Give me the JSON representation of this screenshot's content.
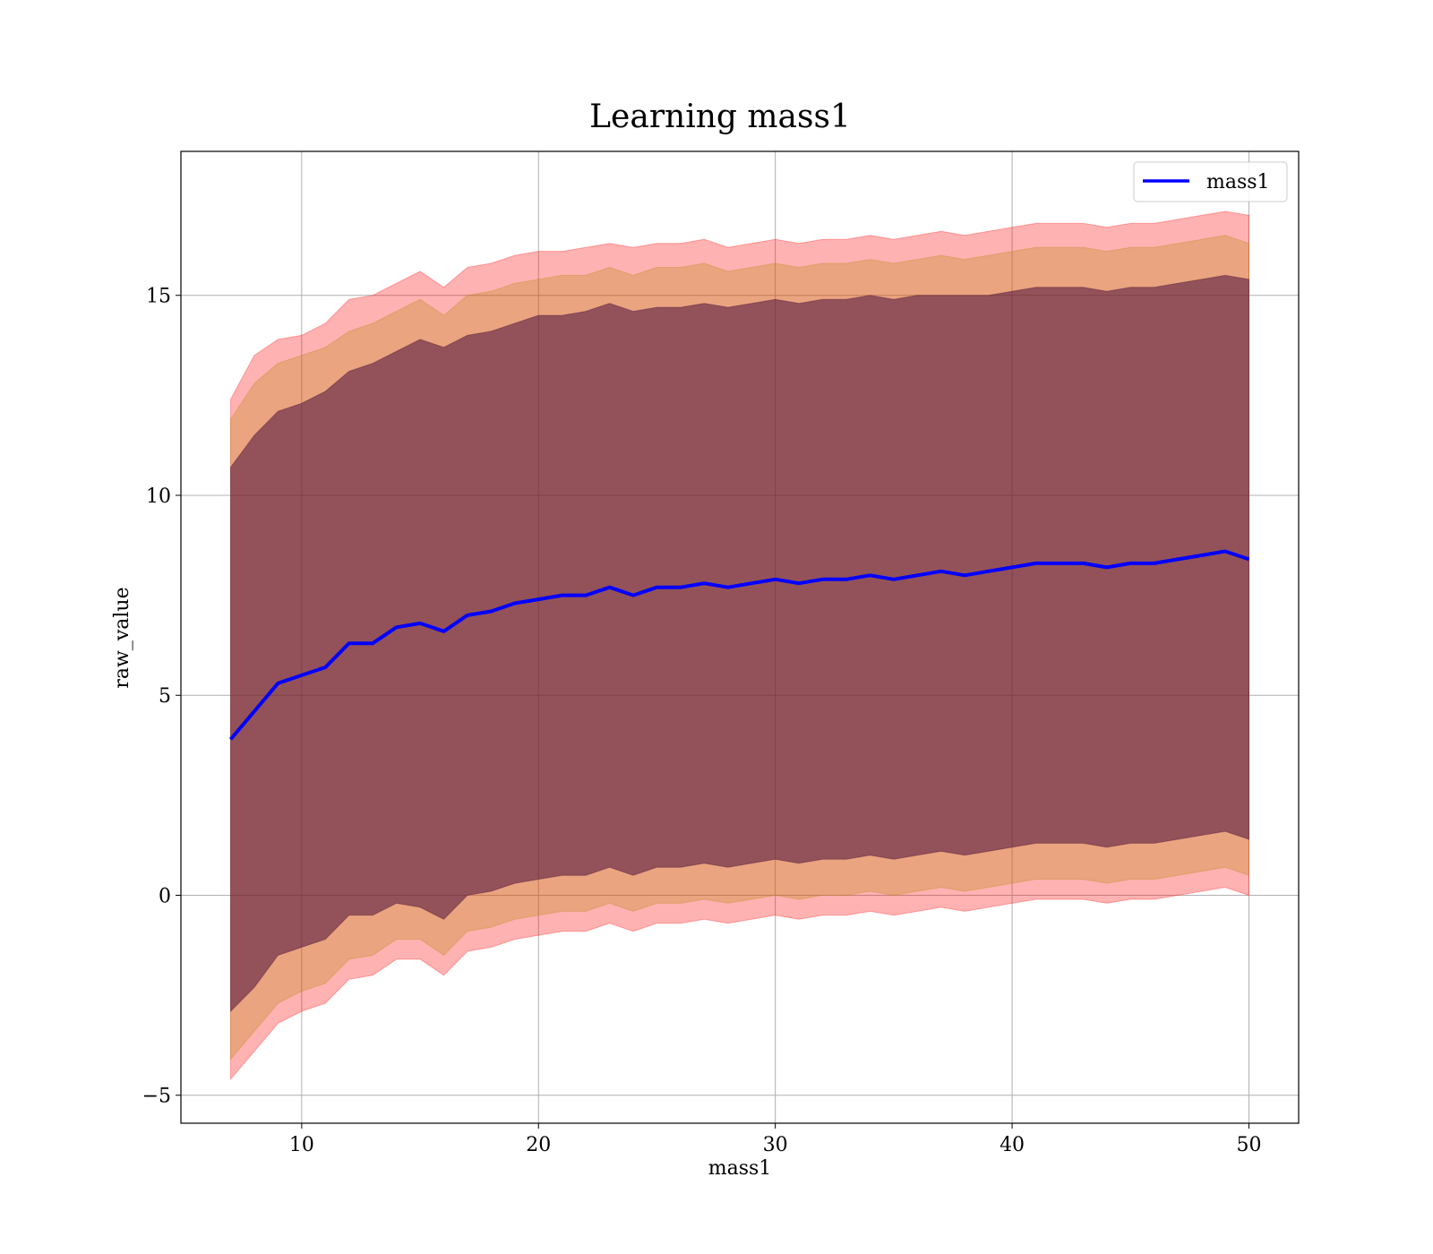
{
  "chart_data": {
    "type": "line",
    "title": "Learning mass1",
    "xlabel": "mass1",
    "ylabel": "raw_value",
    "xlim": [
      4.9,
      52.1
    ],
    "ylim": [
      -5.7,
      18.6
    ],
    "xticks": [
      10,
      20,
      30,
      40,
      50
    ],
    "yticks": [
      -5,
      0,
      5,
      10,
      15
    ],
    "xtick_labels": [
      "10",
      "20",
      "30",
      "40",
      "50"
    ],
    "ytick_labels": [
      "−5",
      "0",
      "5",
      "10",
      "15"
    ],
    "grid": true,
    "legend": {
      "position": "top-right",
      "entries": [
        "mass1"
      ]
    },
    "colors": {
      "line": "#0000ff",
      "band_outer": "#ff0000",
      "band_middle": "#b8860b",
      "band_inner": "#4b0f3a",
      "grid": "#b0b0b0"
    },
    "series": [
      {
        "name": "mass1",
        "x": [
          7,
          8,
          9,
          10,
          11,
          12,
          13,
          14,
          15,
          16,
          17,
          18,
          19,
          20,
          21,
          22,
          23,
          24,
          25,
          26,
          27,
          28,
          29,
          30,
          31,
          32,
          33,
          34,
          35,
          36,
          37,
          38,
          39,
          40,
          41,
          42,
          43,
          44,
          45,
          46,
          47,
          48,
          49,
          50
        ],
        "mean": [
          3.9,
          4.6,
          5.3,
          5.5,
          5.7,
          6.3,
          6.3,
          6.7,
          6.8,
          6.6,
          7.0,
          7.1,
          7.3,
          7.4,
          7.5,
          7.5,
          7.7,
          7.5,
          7.7,
          7.7,
          7.8,
          7.7,
          7.8,
          7.9,
          7.8,
          7.9,
          7.9,
          8.0,
          7.9,
          8.0,
          8.1,
          8.0,
          8.1,
          8.2,
          8.3,
          8.3,
          8.3,
          8.2,
          8.3,
          8.3,
          8.4,
          8.5,
          8.6,
          8.4
        ],
        "band_inner": {
          "upper": [
            10.7,
            11.5,
            12.1,
            12.3,
            12.6,
            13.1,
            13.3,
            13.6,
            13.9,
            13.7,
            14.0,
            14.1,
            14.3,
            14.5,
            14.5,
            14.6,
            14.8,
            14.6,
            14.7,
            14.7,
            14.8,
            14.7,
            14.8,
            14.9,
            14.8,
            14.9,
            14.9,
            15.0,
            14.9,
            15.0,
            15.0,
            15.0,
            15.0,
            15.1,
            15.2,
            15.2,
            15.2,
            15.1,
            15.2,
            15.2,
            15.3,
            15.4,
            15.5,
            15.4
          ],
          "lower": [
            -2.9,
            -2.3,
            -1.5,
            -1.3,
            -1.1,
            -0.5,
            -0.5,
            -0.2,
            -0.3,
            -0.6,
            0.0,
            0.1,
            0.3,
            0.4,
            0.5,
            0.5,
            0.7,
            0.5,
            0.7,
            0.7,
            0.8,
            0.7,
            0.8,
            0.9,
            0.8,
            0.9,
            0.9,
            1.0,
            0.9,
            1.0,
            1.1,
            1.0,
            1.1,
            1.2,
            1.3,
            1.3,
            1.3,
            1.2,
            1.3,
            1.3,
            1.4,
            1.5,
            1.6,
            1.4
          ]
        },
        "band_middle": {
          "upper": [
            11.9,
            12.8,
            13.3,
            13.5,
            13.7,
            14.1,
            14.3,
            14.6,
            14.9,
            14.5,
            15.0,
            15.1,
            15.3,
            15.4,
            15.5,
            15.5,
            15.7,
            15.5,
            15.7,
            15.7,
            15.8,
            15.6,
            15.7,
            15.8,
            15.7,
            15.8,
            15.8,
            15.9,
            15.8,
            15.9,
            16.0,
            15.9,
            16.0,
            16.1,
            16.2,
            16.2,
            16.2,
            16.1,
            16.2,
            16.2,
            16.3,
            16.4,
            16.5,
            16.3
          ],
          "lower": [
            -4.1,
            -3.4,
            -2.7,
            -2.4,
            -2.2,
            -1.6,
            -1.5,
            -1.1,
            -1.1,
            -1.5,
            -0.9,
            -0.8,
            -0.6,
            -0.5,
            -0.4,
            -0.4,
            -0.2,
            -0.4,
            -0.2,
            -0.2,
            -0.1,
            -0.2,
            -0.1,
            0.0,
            -0.1,
            0.0,
            0.0,
            0.1,
            0.0,
            0.1,
            0.2,
            0.1,
            0.2,
            0.3,
            0.4,
            0.4,
            0.4,
            0.3,
            0.4,
            0.4,
            0.5,
            0.6,
            0.7,
            0.5
          ]
        },
        "band_outer": {
          "upper": [
            12.4,
            13.5,
            13.9,
            14.0,
            14.3,
            14.9,
            15.0,
            15.3,
            15.6,
            15.2,
            15.7,
            15.8,
            16.0,
            16.1,
            16.1,
            16.2,
            16.3,
            16.2,
            16.3,
            16.3,
            16.4,
            16.2,
            16.3,
            16.4,
            16.3,
            16.4,
            16.4,
            16.5,
            16.4,
            16.5,
            16.6,
            16.5,
            16.6,
            16.7,
            16.8,
            16.8,
            16.8,
            16.7,
            16.8,
            16.8,
            16.9,
            17.0,
            17.1,
            17.0
          ],
          "lower": [
            -4.6,
            -3.9,
            -3.2,
            -2.9,
            -2.7,
            -2.1,
            -2.0,
            -1.6,
            -1.6,
            -2.0,
            -1.4,
            -1.3,
            -1.1,
            -1.0,
            -0.9,
            -0.9,
            -0.7,
            -0.9,
            -0.7,
            -0.7,
            -0.6,
            -0.7,
            -0.6,
            -0.5,
            -0.6,
            -0.5,
            -0.5,
            -0.4,
            -0.5,
            -0.4,
            -0.3,
            -0.4,
            -0.3,
            -0.2,
            -0.1,
            -0.1,
            -0.1,
            -0.2,
            -0.1,
            -0.1,
            0.0,
            0.1,
            0.2,
            0.0
          ]
        }
      }
    ]
  }
}
